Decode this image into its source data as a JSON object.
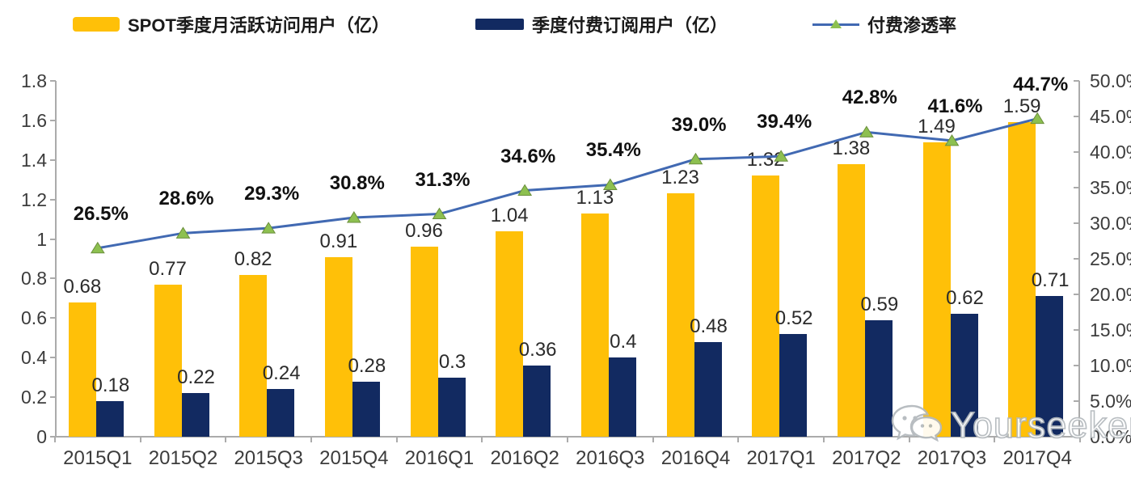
{
  "chart_data": {
    "type": "bar",
    "subtype": "grouped-bars-with-line",
    "categories": [
      "2015Q1",
      "2015Q2",
      "2015Q3",
      "2015Q4",
      "2016Q1",
      "2016Q2",
      "2016Q3",
      "2016Q4",
      "2017Q1",
      "2017Q2",
      "2017Q3",
      "2017Q4"
    ],
    "series": [
      {
        "name": "SPOT季度月活跃访问用户（亿）",
        "type": "bar",
        "axis": "left",
        "color": "#FFC008",
        "values": [
          0.68,
          0.77,
          0.82,
          0.91,
          0.96,
          1.04,
          1.13,
          1.23,
          1.32,
          1.38,
          1.49,
          1.59
        ],
        "labels": [
          "0.68",
          "0.77",
          "0.82",
          "0.91",
          "0.96",
          "1.04",
          "1.13",
          "1.23",
          "1.32",
          "1.38",
          "1.49",
          "1.59"
        ]
      },
      {
        "name": "季度付费订阅用户（亿）",
        "type": "bar",
        "axis": "left",
        "color": "#122A61",
        "values": [
          0.18,
          0.22,
          0.24,
          0.28,
          0.3,
          0.36,
          0.4,
          0.48,
          0.52,
          0.59,
          0.62,
          0.71
        ],
        "labels": [
          "0.18",
          "0.22",
          "0.24",
          "0.28",
          "0.3",
          "0.36",
          "0.4",
          "0.48",
          "0.52",
          "0.59",
          "0.62",
          "0.71"
        ]
      },
      {
        "name": "付费渗透率",
        "type": "line",
        "axis": "right",
        "color": "#4169B2",
        "marker": "triangle",
        "marker_color": "#8DC050",
        "marker_edge_color": "#6B8F3C",
        "values": [
          26.5,
          28.6,
          29.3,
          30.8,
          31.3,
          34.6,
          35.4,
          39.0,
          39.4,
          42.8,
          41.6,
          44.7
        ],
        "labels": [
          "26.5%",
          "28.6%",
          "29.3%",
          "30.8%",
          "31.3%",
          "34.6%",
          "35.4%",
          "39.0%",
          "39.4%",
          "42.8%",
          "41.6%",
          "44.7%"
        ]
      }
    ],
    "left_axis": {
      "min": 0,
      "max": 1.8,
      "tick_labels": [
        "1.8",
        "1.6",
        "1.4",
        "1.2",
        "1",
        "0.8",
        "0.6",
        "0.4",
        "0.2",
        "0"
      ]
    },
    "right_axis": {
      "min": 0,
      "max": 50,
      "tick_labels": [
        "50.0%",
        "45.0%",
        "40.0%",
        "35.0%",
        "30.0%",
        "25.0%",
        "20.0%",
        "15.0%",
        "10.0%",
        "5.0%",
        "0.0%"
      ]
    },
    "grid": false,
    "legend_position": "top",
    "axis_color": "#ABABAB"
  },
  "watermark": {
    "text": "Yourseeker",
    "icon": "wechat-icon"
  }
}
